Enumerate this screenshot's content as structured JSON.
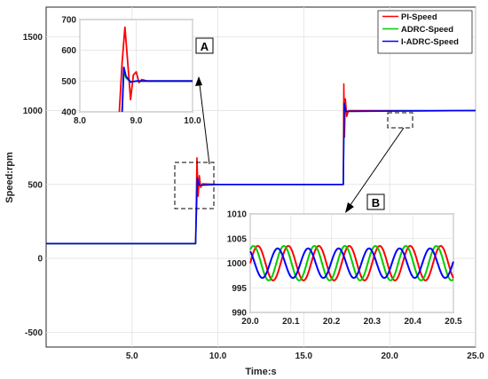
{
  "chart_data": {
    "type": "line",
    "xlabel": "Time:s",
    "ylabel": "Speed:rpm",
    "xlim": [
      0,
      25
    ],
    "ylim": [
      -600,
      1700
    ],
    "x_ticks": [
      "5.0",
      "10.0",
      "15.0",
      "20.0",
      "25.0"
    ],
    "y_ticks": [
      "-500",
      "0",
      "500",
      "1000",
      "1500"
    ],
    "grid": true,
    "legend_position": "top-right",
    "series": [
      {
        "name": "PI-Speed",
        "color": "#ff0000",
        "x": [
          0,
          8.7,
          8.78,
          8.85,
          8.92,
          9.0,
          9.1,
          10.0,
          17.3,
          17.33,
          17.37,
          17.42,
          17.5,
          17.6,
          25.0
        ],
        "y": [
          100,
          100,
          680,
          420,
          560,
          480,
          505,
          500,
          500,
          1180,
          820,
          1080,
          960,
          1000,
          1000
        ]
      },
      {
        "name": "ADRC-Speed",
        "color": "#00cc00",
        "x": [
          0,
          8.7,
          8.8,
          8.9,
          10.0,
          17.3,
          17.35,
          17.45,
          25.0
        ],
        "y": [
          100,
          100,
          530,
          495,
          500,
          500,
          1040,
          995,
          1000
        ]
      },
      {
        "name": "I-ADRC-Speed",
        "color": "#0000ff",
        "x": [
          0,
          8.7,
          8.8,
          8.9,
          10.0,
          17.3,
          17.35,
          17.45,
          25.0
        ],
        "y": [
          100,
          100,
          545,
          495,
          500,
          500,
          1050,
          995,
          1000
        ]
      }
    ],
    "insets": [
      {
        "label": "A",
        "xlim": [
          8.0,
          10.0
        ],
        "ylim": [
          400,
          700
        ],
        "x_ticks": [
          "8.0",
          "9.0",
          "10.0"
        ],
        "y_ticks": [
          "400",
          "500",
          "600",
          "700"
        ],
        "series": [
          {
            "name": "PI-Speed",
            "x": [
              8.7,
              8.75,
              8.8,
              8.85,
              8.9,
              8.95,
              9.0,
              9.05,
              9.1,
              9.2,
              10.0
            ],
            "y": [
              400,
              560,
              675,
              560,
              440,
              520,
              530,
              495,
              505,
              500,
              500
            ]
          },
          {
            "name": "ADRC-Speed",
            "x": [
              8.75,
              8.78,
              8.82,
              8.9,
              9.0,
              10.0
            ],
            "y": [
              400,
              530,
              510,
              497,
              500,
              500
            ]
          },
          {
            "name": "I-ADRC-Speed",
            "x": [
              8.75,
              8.78,
              8.82,
              8.9,
              9.0,
              10.0
            ],
            "y": [
              400,
              545,
              515,
              497,
              500,
              500
            ]
          }
        ]
      },
      {
        "label": "B",
        "xlim": [
          20.0,
          20.5
        ],
        "ylim": [
          990,
          1010
        ],
        "x_ticks": [
          "20.0",
          "20.1",
          "20.2",
          "20.3",
          "20.4",
          "20.5"
        ],
        "y_ticks": [
          "990",
          "995",
          "1000",
          "1005",
          "1010"
        ],
        "oscillation": {
          "center": 1000,
          "period": 0.075,
          "series": [
            {
              "name": "PI-Speed",
              "amplitude": 3.5,
              "phase": 0.0
            },
            {
              "name": "ADRC-Speed",
              "amplitude": 3.5,
              "phase": 0.9
            },
            {
              "name": "I-ADRC-Speed",
              "amplitude": 3.0,
              "phase": 2.2
            }
          ]
        }
      }
    ]
  }
}
